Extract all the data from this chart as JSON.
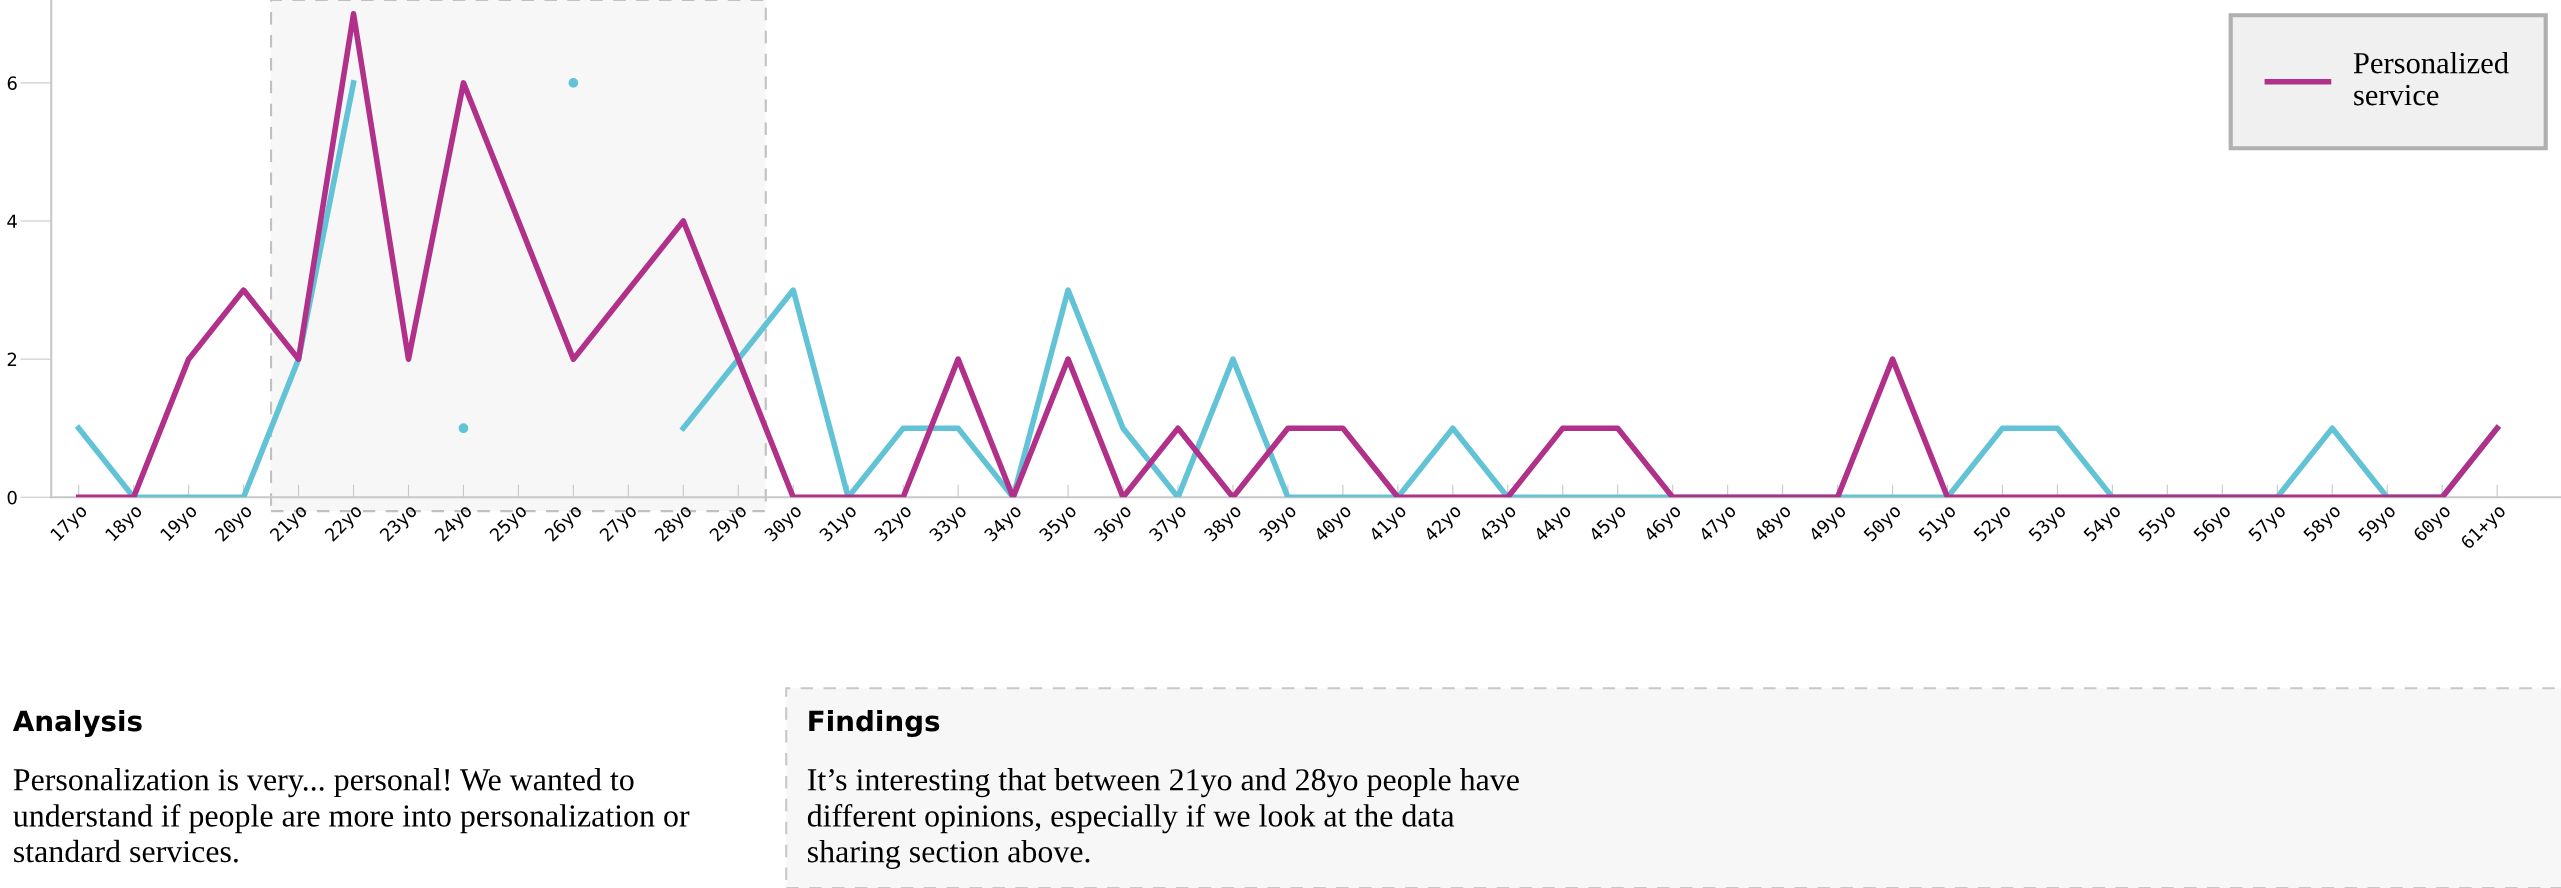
{
  "chart_data": {
    "type": "line",
    "categories": [
      "17yo",
      "18yo",
      "19yo",
      "20yo",
      "21yo",
      "22yo",
      "23yo",
      "24yo",
      "25yo",
      "26yo",
      "27yo",
      "28yo",
      "29yo",
      "30yo",
      "31yo",
      "32yo",
      "33yo",
      "34yo",
      "35yo",
      "36yo",
      "37yo",
      "38yo",
      "39yo",
      "40yo",
      "41yo",
      "42yo",
      "43yo",
      "44yo",
      "45yo",
      "46yo",
      "47yo",
      "48yo",
      "49yo",
      "50yo",
      "51yo",
      "52yo",
      "53yo",
      "54yo",
      "55yo",
      "56yo",
      "57yo",
      "58yo",
      "59yo",
      "60yo",
      "61+yo"
    ],
    "series": [
      {
        "color": "#63c3d6",
        "values": [
          1,
          0,
          0,
          0,
          2,
          6,
          null,
          1,
          null,
          6,
          null,
          1,
          2,
          3,
          0,
          1,
          1,
          0,
          3,
          1,
          0,
          2,
          0,
          0,
          0,
          1,
          0,
          0,
          0,
          0,
          0,
          0,
          0,
          0,
          0,
          1,
          1,
          0,
          0,
          0,
          0,
          1,
          0,
          0,
          1
        ]
      },
      {
        "name": "Personalized service",
        "color": "#b0308a",
        "values": [
          0,
          0,
          2,
          3,
          2,
          7,
          2,
          6,
          4,
          2,
          3,
          4,
          2,
          0,
          0,
          0,
          2,
          0,
          2,
          0,
          1,
          0,
          1,
          1,
          0,
          0,
          0,
          1,
          1,
          0,
          0,
          0,
          0,
          2,
          0,
          0,
          0,
          0,
          0,
          0,
          0,
          0,
          0,
          0,
          1
        ]
      }
    ],
    "ylim": [
      0,
      7.2
    ],
    "yticks": [
      0,
      2,
      4,
      6
    ],
    "bands": [
      {
        "axis": "x",
        "from": "21yo",
        "to": "29yo",
        "color": "#f7f7f7"
      }
    ],
    "legend": "top right",
    "grid": false,
    "marker": "none",
    "line_style": "solid",
    "annotations": [
      "Analysis",
      "Personalization is very... personal! We wanted to understand if people are more into personalization or standard services.",
      "Findings",
      "It’s interesting that between 21yo and 28yo people have different opinions, especially if we look at the data sharing section above."
    ]
  }
}
